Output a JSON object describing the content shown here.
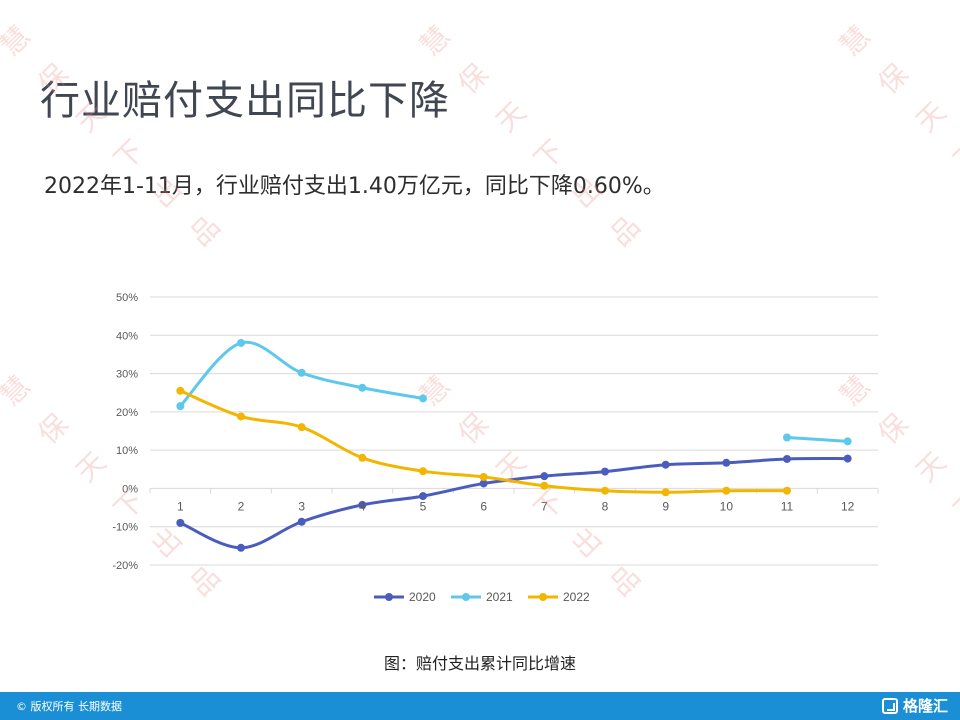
{
  "page": {
    "title": "行业赔付支出同比下降",
    "subtitle": "2022年1-11月，行业赔付支出1.40万亿元，同比下降0.60%。",
    "caption": "图：赔付支出累计同比增速",
    "footer": {
      "copyright": "© 版权所有 长期数据",
      "logo": "格隆汇"
    },
    "watermark_chars": [
      "慧",
      "保",
      "天",
      "下",
      "出",
      "品"
    ]
  },
  "chart_data": {
    "type": "line",
    "categories": [
      "1",
      "2",
      "3",
      "4",
      "5",
      "6",
      "7",
      "8",
      "9",
      "10",
      "11",
      "12"
    ],
    "y_ticks": [
      "50%",
      "40%",
      "30%",
      "20%",
      "10%",
      "0%",
      "-10%",
      "-20%"
    ],
    "ylim": [
      -20,
      50
    ],
    "grid": true,
    "legend_position": "bottom",
    "series": [
      {
        "name": "2020",
        "color": "#4a5dbd",
        "values": [
          -9,
          -15.5,
          -8.7,
          -4.3,
          -2,
          1.3,
          3.2,
          4.4,
          6.2,
          6.7,
          7.7,
          7.8
        ]
      },
      {
        "name": "2021",
        "color": "#5ec8ec",
        "values": [
          21.5,
          38,
          30.2,
          26.3,
          23.5,
          null,
          null,
          null,
          null,
          null,
          13.3,
          12.3
        ]
      },
      {
        "name": "2022",
        "color": "#f2b600",
        "values": [
          25.5,
          18.8,
          16,
          8,
          4.5,
          3,
          0.7,
          -0.6,
          -1,
          -0.6,
          -0.6,
          null
        ]
      }
    ]
  }
}
